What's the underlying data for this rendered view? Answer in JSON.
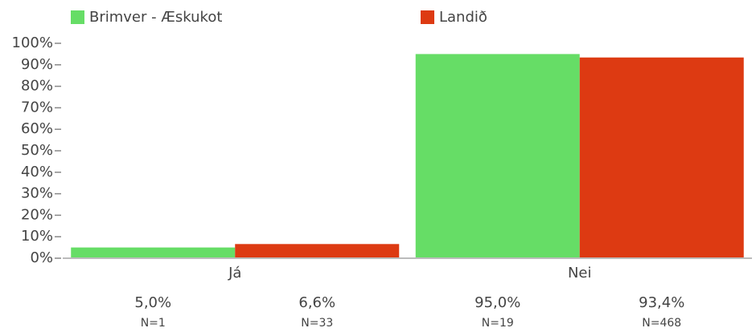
{
  "chart_data": {
    "type": "bar",
    "categories": [
      "Já",
      "Nei"
    ],
    "series": [
      {
        "name": "Brimver - Æskukot",
        "color": "#66dd66",
        "values": [
          5.0,
          95.0
        ],
        "value_labels": [
          "5,0%",
          "95,0%"
        ],
        "n_labels": [
          "N=1",
          "N=19"
        ]
      },
      {
        "name": "Landið",
        "color": "#dd3a12",
        "values": [
          6.6,
          93.4
        ],
        "value_labels": [
          "6,6%",
          "93,4%"
        ],
        "n_labels": [
          "N=33",
          "N=468"
        ]
      }
    ],
    "ylim": [
      0,
      100
    ],
    "yticks": [
      {
        "value": 0,
        "label": "0%"
      },
      {
        "value": 10,
        "label": "10%"
      },
      {
        "value": 20,
        "label": "20%"
      },
      {
        "value": 30,
        "label": "30%"
      },
      {
        "value": 40,
        "label": "40%"
      },
      {
        "value": 50,
        "label": "50%"
      },
      {
        "value": 60,
        "label": "60%"
      },
      {
        "value": 70,
        "label": "70%"
      },
      {
        "value": 80,
        "label": "80%"
      },
      {
        "value": 90,
        "label": "90%"
      },
      {
        "value": 100,
        "label": "100%"
      }
    ],
    "legend": "top"
  }
}
